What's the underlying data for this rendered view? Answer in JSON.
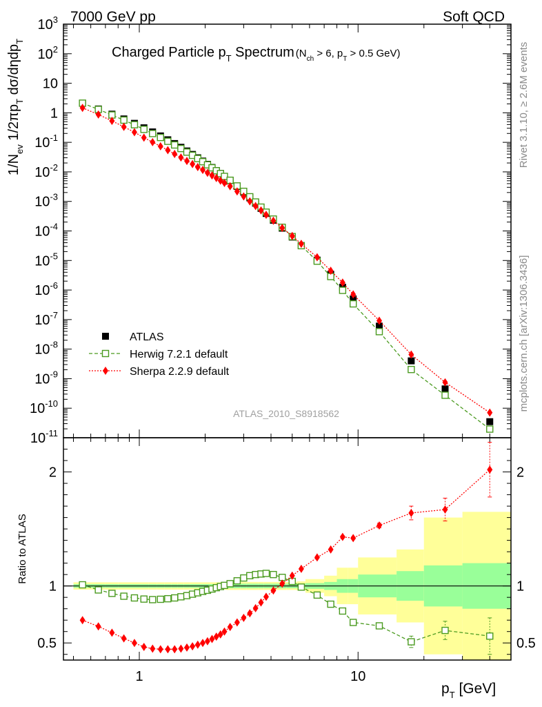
{
  "header": {
    "energy": "7000 GeV pp",
    "process": "Soft QCD"
  },
  "side": {
    "rivet": "Rivet 3.1.10, ≥ 2.6M events",
    "source": "mcplots.cern.ch [arXiv:1306.3436]"
  },
  "chart_data": {
    "type": "scatter",
    "title": "Charged Particle p_T Spectrum",
    "title_main": "Charged Particle p",
    "title_sub": "T",
    "title_main2": " Spectrum",
    "title_cut_pre": "(N",
    "title_cut_sub1": "ch",
    "title_cut_mid": " > 6, p",
    "title_cut_sub2": "T",
    "title_cut_post": " > 0.5 GeV)",
    "analysis_id": "ATLAS_2010_S8918562",
    "xlabel": "p_T  [GeV]",
    "xlabel_main": "p",
    "xlabel_sub": "T",
    "xlabel_post": "  [GeV]",
    "ylabel": "1/N_ev 1/2πp_T dσ/dηdp_T",
    "ratio_ylabel": "Ratio to ATLAS",
    "xscale": "log",
    "xlim": [
      0.45,
      50
    ],
    "ylim": [
      1e-11,
      1000
    ],
    "ratio_ylim": [
      0.35,
      2.3
    ],
    "x_ticks": [
      {
        "v": 1,
        "label": "1"
      },
      {
        "v": 10,
        "label": "10"
      }
    ],
    "y_ticks": [
      {
        "exp": 3,
        "base": "10",
        "sup": "3",
        "label": "10^3"
      },
      {
        "exp": 2,
        "base": "10",
        "sup": "2",
        "label": "10^2"
      },
      {
        "exp": 1,
        "base": "10",
        "sup": "",
        "label": "10"
      },
      {
        "exp": 0,
        "base": "1",
        "sup": "",
        "label": "1"
      },
      {
        "exp": -1,
        "base": "10",
        "sup": "-1",
        "label": "10^-1"
      },
      {
        "exp": -2,
        "base": "10",
        "sup": "-2",
        "label": "10^-2"
      },
      {
        "exp": -3,
        "base": "10",
        "sup": "-3",
        "label": "10^-3"
      },
      {
        "exp": -4,
        "base": "10",
        "sup": "-4",
        "label": "10^-4"
      },
      {
        "exp": -5,
        "base": "10",
        "sup": "-5",
        "label": "10^-5"
      },
      {
        "exp": -6,
        "base": "10",
        "sup": "-6",
        "label": "10^-6"
      },
      {
        "exp": -7,
        "base": "10",
        "sup": "-7",
        "label": "10^-7"
      },
      {
        "exp": -8,
        "base": "10",
        "sup": "-8",
        "label": "10^-8"
      },
      {
        "exp": -9,
        "base": "10",
        "sup": "-9",
        "label": "10^-9"
      },
      {
        "exp": -10,
        "base": "10",
        "sup": "-10",
        "label": "10^-10"
      },
      {
        "exp": -11,
        "base": "10",
        "sup": "-11",
        "label": "10^-11"
      }
    ],
    "ratio_ticks": [
      {
        "v": 0.5,
        "label": "0.5"
      },
      {
        "v": 1,
        "label": "1"
      },
      {
        "v": 2,
        "label": "2"
      }
    ],
    "x": [
      0.55,
      0.65,
      0.75,
      0.85,
      0.95,
      1.05,
      1.15,
      1.25,
      1.35,
      1.45,
      1.55,
      1.65,
      1.75,
      1.85,
      1.95,
      2.05,
      2.15,
      2.25,
      2.35,
      2.45,
      2.6,
      2.8,
      3.0,
      3.2,
      3.4,
      3.6,
      3.8,
      4.1,
      4.5,
      5.0,
      5.5,
      6.5,
      7.5,
      8.5,
      9.5,
      12.5,
      17.5,
      25.0,
      40.0
    ],
    "x_edges": [
      0.5,
      0.6,
      0.7,
      0.8,
      0.9,
      1.0,
      1.1,
      1.2,
      1.3,
      1.4,
      1.5,
      1.6,
      1.7,
      1.8,
      1.9,
      2.0,
      2.1,
      2.2,
      2.3,
      2.4,
      2.5,
      2.7,
      2.9,
      3.1,
      3.3,
      3.5,
      3.7,
      3.9,
      4.3,
      4.7,
      5.25,
      5.75,
      7.0,
      8.0,
      9.0,
      10.0,
      15.0,
      20.0,
      30.0,
      50.0
    ],
    "band_inner": [
      0.016,
      0.016,
      0.016,
      0.016,
      0.016,
      0.016,
      0.016,
      0.016,
      0.016,
      0.016,
      0.016,
      0.016,
      0.016,
      0.016,
      0.016,
      0.016,
      0.016,
      0.016,
      0.016,
      0.016,
      0.02,
      0.02,
      0.02,
      0.02,
      0.02,
      0.02,
      0.02,
      0.02,
      0.02,
      0.02,
      0.02,
      0.025,
      0.035,
      0.06,
      0.06,
      0.1,
      0.13,
      0.18,
      0.2
    ],
    "band_outer": [
      0.032,
      0.032,
      0.032,
      0.032,
      0.032,
      0.032,
      0.032,
      0.032,
      0.032,
      0.032,
      0.032,
      0.032,
      0.032,
      0.032,
      0.032,
      0.032,
      0.032,
      0.032,
      0.032,
      0.032,
      0.035,
      0.035,
      0.035,
      0.035,
      0.035,
      0.035,
      0.035,
      0.035,
      0.035,
      0.035,
      0.04,
      0.06,
      0.09,
      0.16,
      0.16,
      0.25,
      0.32,
      0.6,
      0.65
    ],
    "legend": [
      {
        "name": "ATLAS",
        "color": "#000000",
        "marker": "square-filled"
      },
      {
        "name": "Herwig 7.2.1 default",
        "color": "#4a9a1f",
        "marker": "square-open"
      },
      {
        "name": "Sherpa 2.2.9 default",
        "color": "#ff0000",
        "marker": "diamond"
      }
    ],
    "series": [
      {
        "name": "ATLAS",
        "color": "#000000",
        "values": [
          2.1,
          1.35,
          0.9,
          0.62,
          0.44,
          0.31,
          0.225,
          0.165,
          0.122,
          0.091,
          0.068,
          0.051,
          0.039,
          0.03,
          0.0232,
          0.018,
          0.0141,
          0.0111,
          0.0088,
          0.007,
          0.0051,
          0.0032,
          0.00205,
          0.00132,
          0.00087,
          0.00058,
          0.00039,
          0.00023,
          0.000124,
          6.2e-05,
          3.2e-05,
          1.03e-05,
          3.4e-06,
          1.25e-06,
          5e-07,
          6e-08,
          4e-09,
          4.5e-10,
          3.5e-11
        ],
        "ratio": [
          1,
          1,
          1,
          1,
          1,
          1,
          1,
          1,
          1,
          1,
          1,
          1,
          1,
          1,
          1,
          1,
          1,
          1,
          1,
          1,
          1,
          1,
          1,
          1,
          1,
          1,
          1,
          1,
          1,
          1,
          1,
          1,
          1,
          1,
          1,
          1,
          1,
          1,
          1
        ]
      },
      {
        "name": "Herwig 7.2.1 default",
        "color": "#4a9a1f",
        "ratio": [
          1.01,
          0.965,
          0.935,
          0.91,
          0.895,
          0.885,
          0.88,
          0.883,
          0.888,
          0.895,
          0.905,
          0.915,
          0.928,
          0.94,
          0.952,
          0.962,
          0.973,
          0.985,
          0.995,
          1.005,
          1.02,
          1.045,
          1.07,
          1.09,
          1.1,
          1.105,
          1.11,
          1.1,
          1.075,
          1.04,
          0.99,
          0.92,
          0.84,
          0.78,
          0.68,
          0.65,
          0.51,
          0.61,
          0.56
        ],
        "ratio_err": [
          0,
          0,
          0,
          0,
          0,
          0,
          0,
          0,
          0,
          0,
          0,
          0,
          0,
          0,
          0,
          0,
          0,
          0,
          0,
          0,
          0,
          0,
          0,
          0,
          0,
          0,
          0,
          0,
          0,
          0,
          0,
          0,
          0,
          0,
          0.01,
          0.02,
          0.05,
          0.08,
          0.16
        ]
      },
      {
        "name": "Sherpa 2.2.9 default",
        "color": "#ff0000",
        "ratio": [
          0.7,
          0.645,
          0.59,
          0.54,
          0.5,
          0.465,
          0.45,
          0.445,
          0.445,
          0.445,
          0.45,
          0.46,
          0.47,
          0.485,
          0.5,
          0.515,
          0.535,
          0.555,
          0.575,
          0.6,
          0.64,
          0.68,
          0.72,
          0.76,
          0.805,
          0.855,
          0.905,
          0.96,
          1.02,
          1.09,
          1.15,
          1.25,
          1.32,
          1.43,
          1.42,
          1.53,
          1.64,
          1.67,
          2.02
        ],
        "ratio_err": [
          0,
          0,
          0,
          0,
          0,
          0,
          0,
          0,
          0,
          0,
          0,
          0,
          0,
          0,
          0,
          0,
          0,
          0,
          0,
          0,
          0,
          0,
          0,
          0,
          0,
          0,
          0,
          0,
          0,
          0,
          0,
          0,
          0,
          0.01,
          0.01,
          0.02,
          0.06,
          0.1,
          0.24
        ]
      }
    ]
  }
}
